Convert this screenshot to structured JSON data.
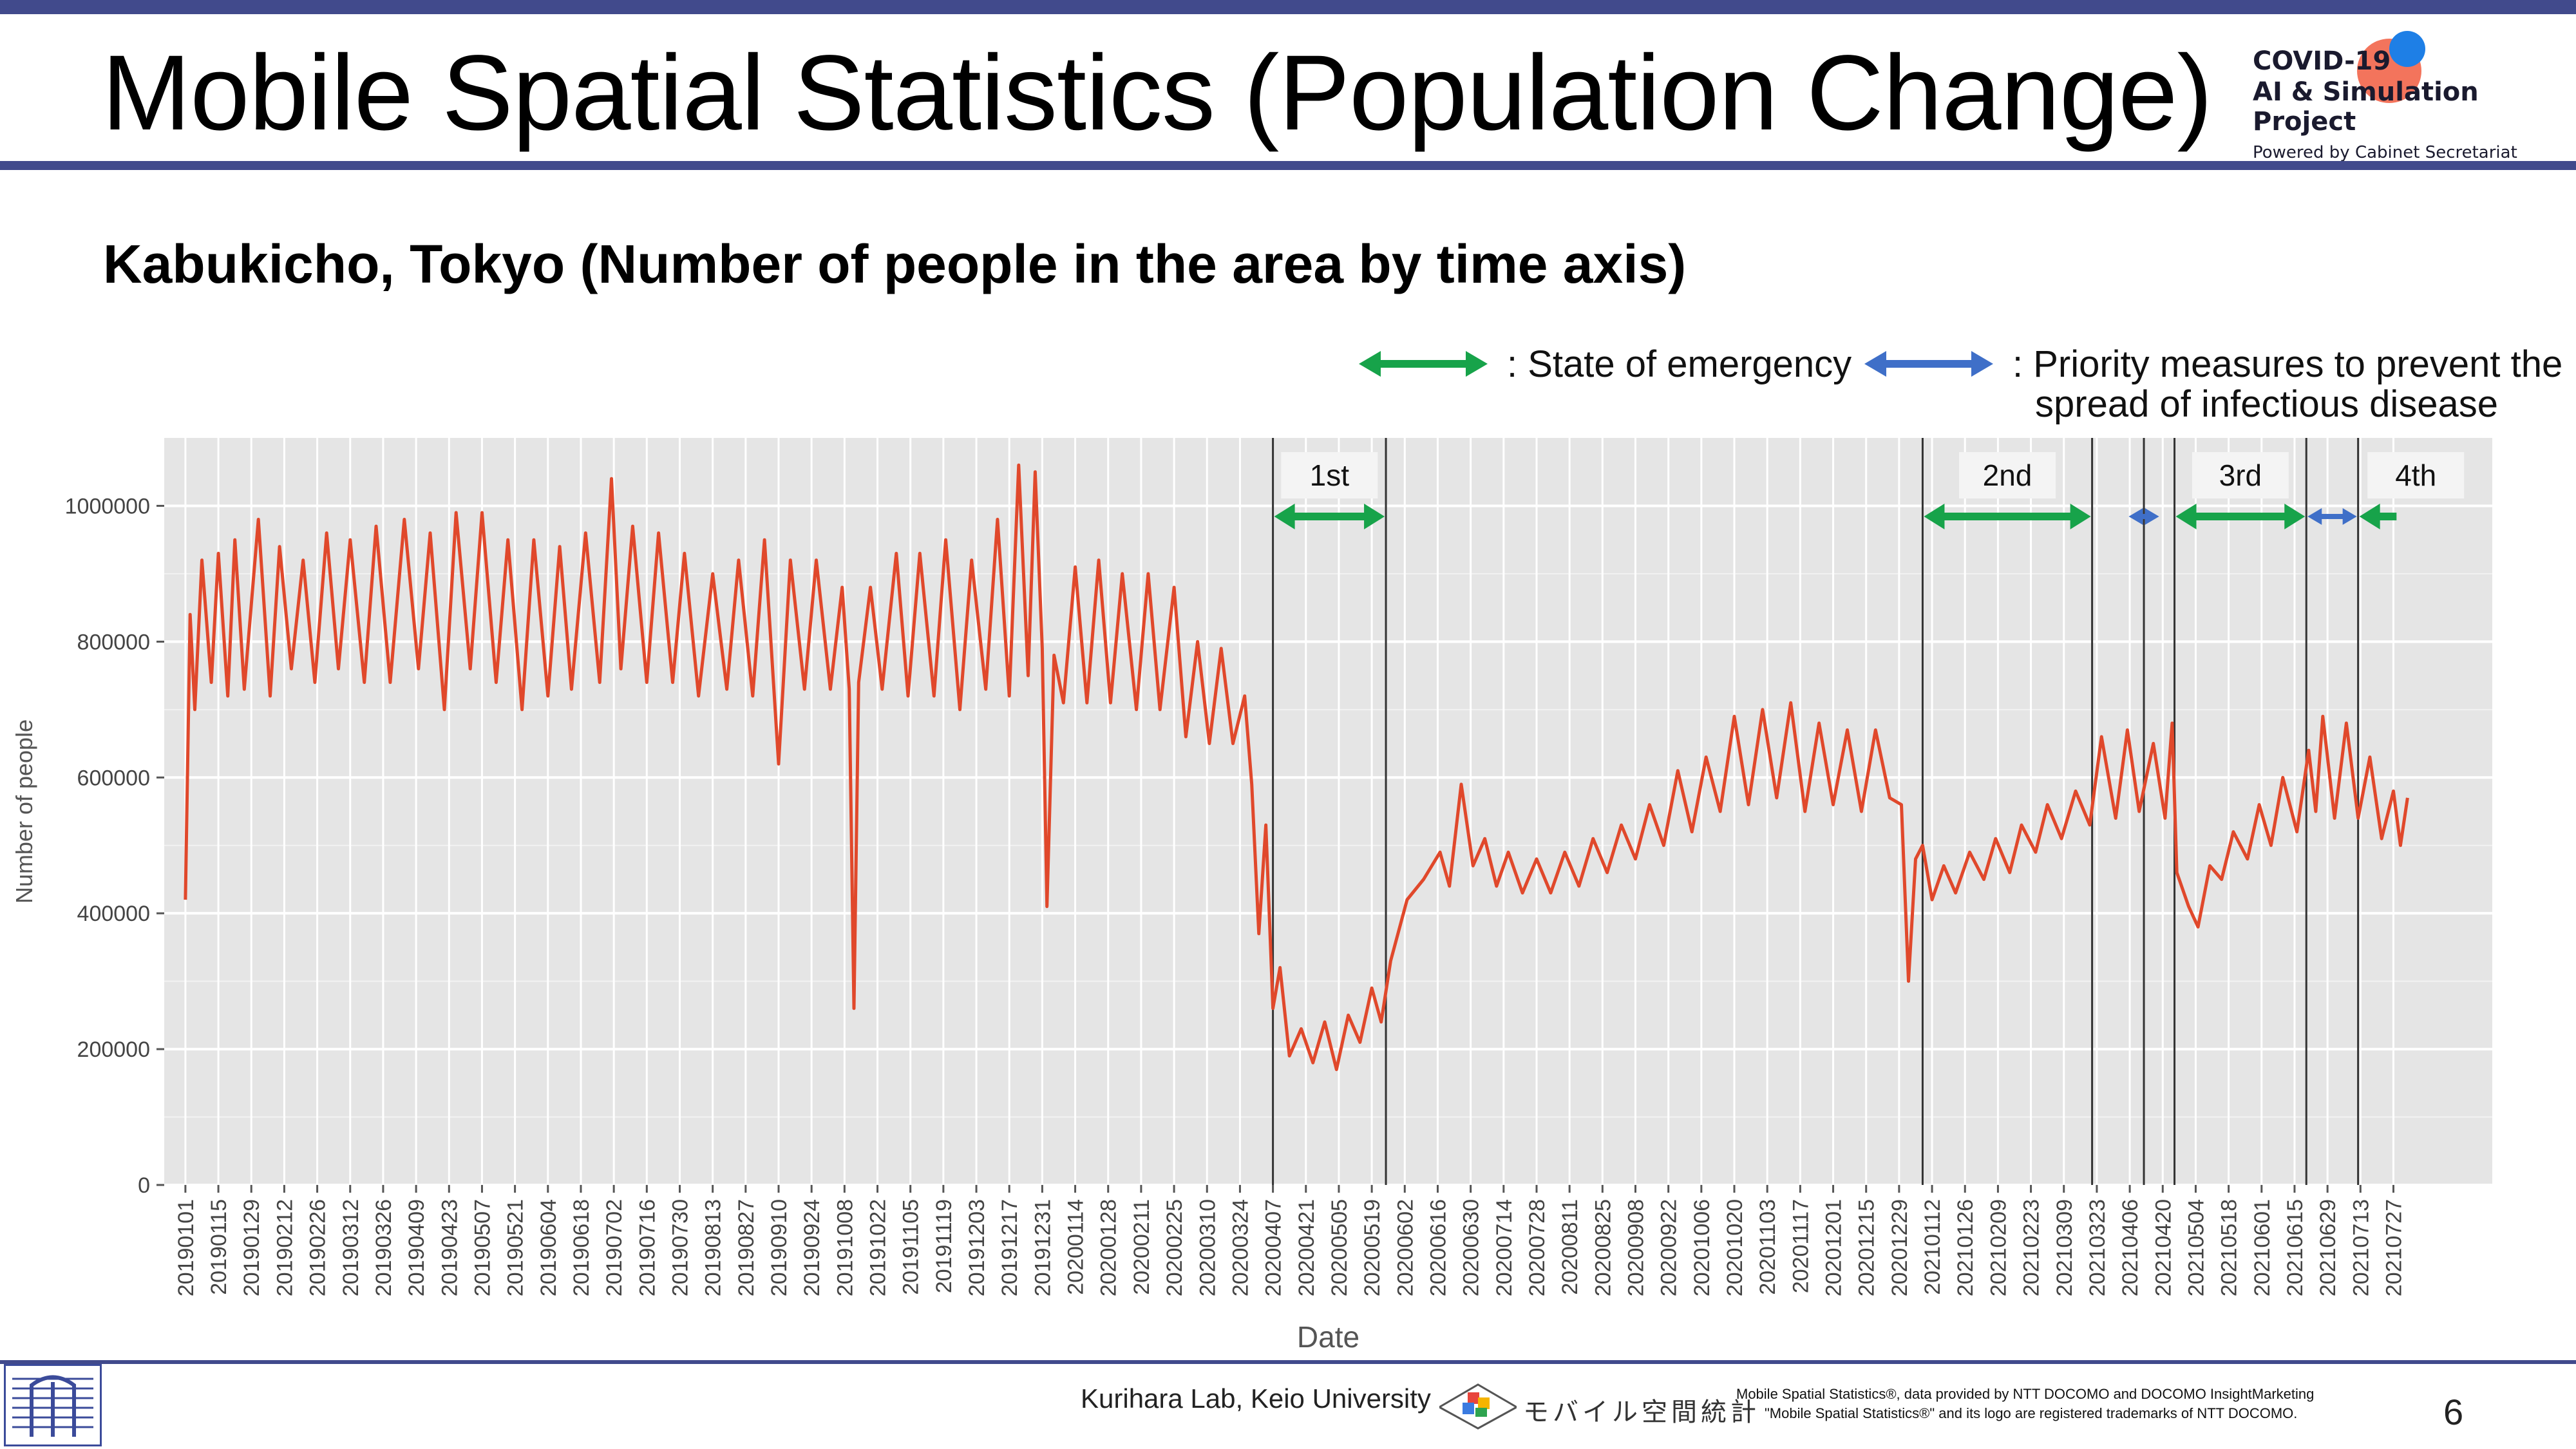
{
  "header": {
    "title": "Mobile Spatial Statistics (Population Change)",
    "brand_line1": "COVID-19",
    "brand_line2": "AI & Simulation Project",
    "brand_line3": "Powered by Cabinet Secretariat"
  },
  "subtitle": "Kabukicho, Tokyo (Number of people in the area by time axis)",
  "legend": {
    "emergency_label": ": State of emergency",
    "priority_label_line1": ": Priority measures to prevent the",
    "priority_label_line2": "spread of infectious disease",
    "emergency_color": "#17a34a",
    "priority_color": "#3f6fc8"
  },
  "chart_data": {
    "type": "line",
    "title": "",
    "xlabel": "Date",
    "ylabel": "Number of people",
    "ylim": [
      0,
      1100000
    ],
    "yticks": [
      0,
      200000,
      400000,
      600000,
      800000,
      1000000
    ],
    "xlim": [
      "2018-12-23",
      "2021-09-07"
    ],
    "line_color": "#e0482b",
    "panel_color": "#e5e5e5",
    "grid": true,
    "xtick_labels": [
      "20190101",
      "20190115",
      "20190129",
      "20190212",
      "20190226",
      "20190312",
      "20190326",
      "20190409",
      "20190423",
      "20190507",
      "20190521",
      "20190604",
      "20190618",
      "20190702",
      "20190716",
      "20190730",
      "20190813",
      "20190827",
      "20190910",
      "20190924",
      "20191008",
      "20191022",
      "20191105",
      "20191119",
      "20191203",
      "20191217",
      "20191231",
      "20200114",
      "20200128",
      "20200211",
      "20200225",
      "20200310",
      "20200324",
      "20200407",
      "20200421",
      "20200505",
      "20200519",
      "20200602",
      "20200616",
      "20200630",
      "20200714",
      "20200728",
      "20200811",
      "20200825",
      "20200908",
      "20200922",
      "20201006",
      "20201020",
      "20201103",
      "20201117",
      "20201201",
      "20201215",
      "20201229",
      "20210112",
      "20210126",
      "20210209",
      "20210223",
      "20210309",
      "20210323",
      "20210406",
      "20210420",
      "20210504",
      "20210518",
      "20210601",
      "20210615",
      "20210629",
      "20210713",
      "20210727"
    ],
    "series": [
      {
        "points": [
          [
            "2019-01-01",
            420000
          ],
          [
            "2019-01-03",
            840000
          ],
          [
            "2019-01-05",
            700000
          ],
          [
            "2019-01-08",
            920000
          ],
          [
            "2019-01-12",
            740000
          ],
          [
            "2019-01-15",
            930000
          ],
          [
            "2019-01-19",
            720000
          ],
          [
            "2019-01-22",
            950000
          ],
          [
            "2019-01-26",
            730000
          ],
          [
            "2019-02-01",
            980000
          ],
          [
            "2019-02-06",
            720000
          ],
          [
            "2019-02-10",
            940000
          ],
          [
            "2019-02-15",
            760000
          ],
          [
            "2019-02-20",
            920000
          ],
          [
            "2019-02-25",
            740000
          ],
          [
            "2019-03-02",
            960000
          ],
          [
            "2019-03-07",
            760000
          ],
          [
            "2019-03-12",
            950000
          ],
          [
            "2019-03-18",
            740000
          ],
          [
            "2019-03-23",
            970000
          ],
          [
            "2019-03-29",
            740000
          ],
          [
            "2019-04-04",
            980000
          ],
          [
            "2019-04-10",
            760000
          ],
          [
            "2019-04-15",
            960000
          ],
          [
            "2019-04-21",
            700000
          ],
          [
            "2019-04-26",
            990000
          ],
          [
            "2019-05-02",
            760000
          ],
          [
            "2019-05-07",
            990000
          ],
          [
            "2019-05-13",
            740000
          ],
          [
            "2019-05-18",
            950000
          ],
          [
            "2019-05-24",
            700000
          ],
          [
            "2019-05-29",
            950000
          ],
          [
            "2019-06-04",
            720000
          ],
          [
            "2019-06-09",
            940000
          ],
          [
            "2019-06-14",
            730000
          ],
          [
            "2019-06-20",
            960000
          ],
          [
            "2019-06-26",
            740000
          ],
          [
            "2019-07-01",
            1040000
          ],
          [
            "2019-07-05",
            760000
          ],
          [
            "2019-07-10",
            970000
          ],
          [
            "2019-07-16",
            740000
          ],
          [
            "2019-07-21",
            960000
          ],
          [
            "2019-07-27",
            740000
          ],
          [
            "2019-08-01",
            930000
          ],
          [
            "2019-08-07",
            720000
          ],
          [
            "2019-08-13",
            900000
          ],
          [
            "2019-08-19",
            730000
          ],
          [
            "2019-08-24",
            920000
          ],
          [
            "2019-08-30",
            720000
          ],
          [
            "2019-09-04",
            950000
          ],
          [
            "2019-09-10",
            620000
          ],
          [
            "2019-09-15",
            920000
          ],
          [
            "2019-09-21",
            730000
          ],
          [
            "2019-09-26",
            920000
          ],
          [
            "2019-10-02",
            730000
          ],
          [
            "2019-10-07",
            880000
          ],
          [
            "2019-10-10",
            730000
          ],
          [
            "2019-10-12",
            260000
          ],
          [
            "2019-10-14",
            740000
          ],
          [
            "2019-10-19",
            880000
          ],
          [
            "2019-10-24",
            730000
          ],
          [
            "2019-10-30",
            930000
          ],
          [
            "2019-11-04",
            720000
          ],
          [
            "2019-11-09",
            930000
          ],
          [
            "2019-11-15",
            720000
          ],
          [
            "2019-11-20",
            950000
          ],
          [
            "2019-11-26",
            700000
          ],
          [
            "2019-12-01",
            920000
          ],
          [
            "2019-12-07",
            730000
          ],
          [
            "2019-12-12",
            980000
          ],
          [
            "2019-12-17",
            720000
          ],
          [
            "2019-12-21",
            1060000
          ],
          [
            "2019-12-25",
            750000
          ],
          [
            "2019-12-28",
            1050000
          ],
          [
            "2019-12-31",
            790000
          ],
          [
            "2020-01-02",
            410000
          ],
          [
            "2020-01-05",
            780000
          ],
          [
            "2020-01-09",
            710000
          ],
          [
            "2020-01-14",
            910000
          ],
          [
            "2020-01-19",
            710000
          ],
          [
            "2020-01-24",
            920000
          ],
          [
            "2020-01-29",
            710000
          ],
          [
            "2020-02-03",
            900000
          ],
          [
            "2020-02-09",
            700000
          ],
          [
            "2020-02-14",
            900000
          ],
          [
            "2020-02-19",
            700000
          ],
          [
            "2020-02-25",
            880000
          ],
          [
            "2020-03-01",
            660000
          ],
          [
            "2020-03-06",
            800000
          ],
          [
            "2020-03-11",
            650000
          ],
          [
            "2020-03-16",
            790000
          ],
          [
            "2020-03-21",
            650000
          ],
          [
            "2020-03-26",
            720000
          ],
          [
            "2020-03-29",
            590000
          ],
          [
            "2020-04-01",
            370000
          ],
          [
            "2020-04-04",
            530000
          ],
          [
            "2020-04-07",
            260000
          ],
          [
            "2020-04-10",
            320000
          ],
          [
            "2020-04-14",
            190000
          ],
          [
            "2020-04-19",
            230000
          ],
          [
            "2020-04-24",
            180000
          ],
          [
            "2020-04-29",
            240000
          ],
          [
            "2020-05-04",
            170000
          ],
          [
            "2020-05-09",
            250000
          ],
          [
            "2020-05-14",
            210000
          ],
          [
            "2020-05-19",
            290000
          ],
          [
            "2020-05-23",
            240000
          ],
          [
            "2020-05-27",
            330000
          ],
          [
            "2020-06-03",
            420000
          ],
          [
            "2020-06-10",
            450000
          ],
          [
            "2020-06-17",
            490000
          ],
          [
            "2020-06-21",
            440000
          ],
          [
            "2020-06-26",
            590000
          ],
          [
            "2020-07-01",
            470000
          ],
          [
            "2020-07-06",
            510000
          ],
          [
            "2020-07-11",
            440000
          ],
          [
            "2020-07-16",
            490000
          ],
          [
            "2020-07-22",
            430000
          ],
          [
            "2020-07-28",
            480000
          ],
          [
            "2020-08-03",
            430000
          ],
          [
            "2020-08-09",
            490000
          ],
          [
            "2020-08-15",
            440000
          ],
          [
            "2020-08-21",
            510000
          ],
          [
            "2020-08-27",
            460000
          ],
          [
            "2020-09-02",
            530000
          ],
          [
            "2020-09-08",
            480000
          ],
          [
            "2020-09-14",
            560000
          ],
          [
            "2020-09-20",
            500000
          ],
          [
            "2020-09-26",
            610000
          ],
          [
            "2020-10-02",
            520000
          ],
          [
            "2020-10-08",
            630000
          ],
          [
            "2020-10-14",
            550000
          ],
          [
            "2020-10-20",
            690000
          ],
          [
            "2020-10-26",
            560000
          ],
          [
            "2020-11-01",
            700000
          ],
          [
            "2020-11-07",
            570000
          ],
          [
            "2020-11-13",
            710000
          ],
          [
            "2020-11-19",
            550000
          ],
          [
            "2020-11-25",
            680000
          ],
          [
            "2020-12-01",
            560000
          ],
          [
            "2020-12-07",
            670000
          ],
          [
            "2020-12-13",
            550000
          ],
          [
            "2020-12-19",
            670000
          ],
          [
            "2020-12-25",
            570000
          ],
          [
            "2020-12-30",
            560000
          ],
          [
            "2021-01-02",
            300000
          ],
          [
            "2021-01-05",
            480000
          ],
          [
            "2021-01-08",
            500000
          ],
          [
            "2021-01-12",
            420000
          ],
          [
            "2021-01-17",
            470000
          ],
          [
            "2021-01-22",
            430000
          ],
          [
            "2021-01-28",
            490000
          ],
          [
            "2021-02-03",
            450000
          ],
          [
            "2021-02-08",
            510000
          ],
          [
            "2021-02-14",
            460000
          ],
          [
            "2021-02-19",
            530000
          ],
          [
            "2021-02-25",
            490000
          ],
          [
            "2021-03-02",
            560000
          ],
          [
            "2021-03-08",
            510000
          ],
          [
            "2021-03-14",
            580000
          ],
          [
            "2021-03-20",
            530000
          ],
          [
            "2021-03-25",
            660000
          ],
          [
            "2021-03-31",
            540000
          ],
          [
            "2021-04-05",
            670000
          ],
          [
            "2021-04-10",
            550000
          ],
          [
            "2021-04-16",
            650000
          ],
          [
            "2021-04-21",
            540000
          ],
          [
            "2021-04-24",
            680000
          ],
          [
            "2021-04-26",
            460000
          ],
          [
            "2021-05-01",
            410000
          ],
          [
            "2021-05-05",
            380000
          ],
          [
            "2021-05-10",
            470000
          ],
          [
            "2021-05-15",
            450000
          ],
          [
            "2021-05-20",
            520000
          ],
          [
            "2021-05-26",
            480000
          ],
          [
            "2021-05-31",
            560000
          ],
          [
            "2021-06-05",
            500000
          ],
          [
            "2021-06-10",
            600000
          ],
          [
            "2021-06-16",
            520000
          ],
          [
            "2021-06-21",
            640000
          ],
          [
            "2021-06-24",
            550000
          ],
          [
            "2021-06-27",
            690000
          ],
          [
            "2021-07-02",
            540000
          ],
          [
            "2021-07-07",
            680000
          ],
          [
            "2021-07-12",
            540000
          ],
          [
            "2021-07-17",
            630000
          ],
          [
            "2021-07-22",
            510000
          ],
          [
            "2021-07-27",
            580000
          ],
          [
            "2021-07-30",
            500000
          ],
          [
            "2021-08-02",
            570000
          ]
        ]
      }
    ],
    "period_lines": [
      "2020-04-07",
      "2020-05-25",
      "2021-01-08",
      "2021-03-21",
      "2021-04-12",
      "2021-04-25",
      "2021-06-20",
      "2021-07-12"
    ],
    "period_labels": [
      {
        "label": "1st",
        "start": "2020-04-07",
        "end": "2020-05-25"
      },
      {
        "label": "2nd",
        "start": "2021-01-08",
        "end": "2021-03-21"
      },
      {
        "label": "3rd",
        "start": "2021-04-25",
        "end": "2021-06-20"
      },
      {
        "label": "4th",
        "start": "2021-07-12",
        "end": "2021-08-30"
      }
    ],
    "arrows": [
      {
        "kind": "emergency",
        "start": "2020-04-07",
        "end": "2020-05-25"
      },
      {
        "kind": "emergency",
        "start": "2021-01-08",
        "end": "2021-03-21"
      },
      {
        "kind": "priority",
        "start": "2021-04-05",
        "end": "2021-04-19"
      },
      {
        "kind": "emergency",
        "start": "2021-04-25",
        "end": "2021-06-20"
      },
      {
        "kind": "priority",
        "start": "2021-06-20",
        "end": "2021-07-12"
      },
      {
        "kind": "emergency",
        "start": "2021-07-12",
        "end": "2021-08-04"
      }
    ]
  },
  "footer": {
    "lab": "Kurihara Lab, Keio University",
    "jp_logo_text": "モバイル空間統計",
    "credit_line1": "Mobile Spatial Statistics®, data provided by NTT DOCOMO and DOCOMO InsightMarketing",
    "credit_line2": "\"Mobile Spatial Statistics®\" and its logo are registered trademarks of NTT DOCOMO.",
    "page": "6"
  }
}
